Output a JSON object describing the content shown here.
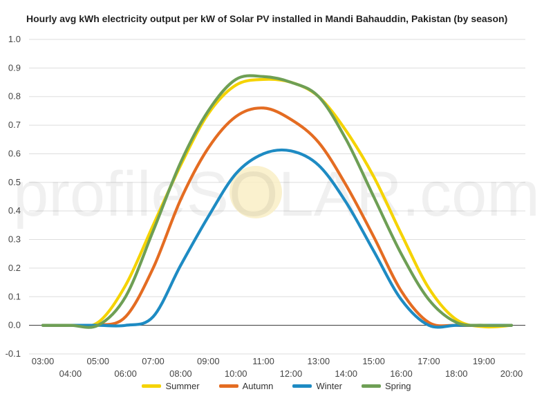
{
  "chart_data": {
    "type": "line",
    "title": "Hourly avg kWh electricity output per kW of Solar PV installed in Mandi Bahauddin, Pakistan (by season)",
    "xlabel": "",
    "ylabel": "",
    "ylim": [
      -0.1,
      1.0
    ],
    "y_ticks": [
      "1.0",
      "0.9",
      "0.8",
      "0.7",
      "0.6",
      "0.5",
      "0.4",
      "0.3",
      "0.2",
      "0.1",
      "0.0",
      "-0.1"
    ],
    "x_ticks": [
      "03:00",
      "04:00",
      "05:00",
      "06:00",
      "07:00",
      "08:00",
      "09:00",
      "10:00",
      "11:00",
      "12:00",
      "13:00",
      "14:00",
      "15:00",
      "16:00",
      "17:00",
      "18:00",
      "19:00",
      "20:00"
    ],
    "x": [
      3,
      4,
      5,
      6,
      7,
      8,
      9,
      10,
      11,
      12,
      13,
      14,
      15,
      16,
      17,
      18,
      19,
      20
    ],
    "grid": true,
    "legend_position": "bottom",
    "watermark": "profileSOLAR.com",
    "series": [
      {
        "name": "Summer",
        "color": "#F5D300",
        "values": [
          0.0,
          0.0,
          0.01,
          0.14,
          0.35,
          0.56,
          0.74,
          0.84,
          0.86,
          0.85,
          0.8,
          0.68,
          0.52,
          0.32,
          0.13,
          0.02,
          -0.005,
          0.0
        ]
      },
      {
        "name": "Autumn",
        "color": "#E46C22",
        "values": [
          0.0,
          0.0,
          0.0,
          0.03,
          0.2,
          0.44,
          0.62,
          0.73,
          0.76,
          0.72,
          0.64,
          0.49,
          0.31,
          0.12,
          0.01,
          0.0,
          0.0,
          0.0
        ]
      },
      {
        "name": "Winter",
        "color": "#1E8BC3",
        "values": [
          0.0,
          0.0,
          0.0,
          0.0,
          0.03,
          0.21,
          0.38,
          0.53,
          0.6,
          0.61,
          0.56,
          0.43,
          0.26,
          0.09,
          0.0,
          0.0,
          0.0,
          0.0
        ]
      },
      {
        "name": "Spring",
        "color": "#6E9F55",
        "values": [
          0.0,
          0.0,
          0.0,
          0.1,
          0.33,
          0.57,
          0.75,
          0.86,
          0.87,
          0.85,
          0.8,
          0.65,
          0.45,
          0.25,
          0.09,
          0.01,
          0.0,
          0.0
        ]
      }
    ]
  }
}
